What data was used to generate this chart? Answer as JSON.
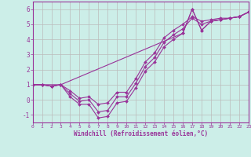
{
  "xlabel": "Windchill (Refroidissement éolien,°C)",
  "xlim": [
    0,
    23
  ],
  "ylim": [
    -1.5,
    6.5
  ],
  "xticks": [
    0,
    1,
    2,
    3,
    4,
    5,
    6,
    7,
    8,
    9,
    10,
    11,
    12,
    13,
    14,
    15,
    16,
    17,
    18,
    19,
    20,
    21,
    22,
    23
  ],
  "yticks": [
    -1,
    0,
    1,
    2,
    3,
    4,
    5,
    6
  ],
  "background_color": "#cceee8",
  "grid_color": "#bbbbbb",
  "line_color": "#993399",
  "line_width": 0.8,
  "marker": "D",
  "marker_size": 2.0,
  "lines": [
    {
      "x": [
        0,
        1,
        2,
        3,
        4,
        5,
        6,
        7,
        8,
        9,
        10,
        11,
        12,
        13,
        14,
        15,
        16,
        17,
        18,
        19,
        20,
        21,
        22,
        23
      ],
      "y": [
        1.0,
        1.0,
        0.9,
        1.0,
        0.2,
        -0.3,
        -0.3,
        -1.2,
        -1.1,
        -0.2,
        -0.1,
        0.8,
        1.9,
        2.5,
        3.5,
        4.0,
        4.4,
        6.0,
        4.6,
        5.2,
        5.3,
        5.4,
        5.5,
        5.8
      ]
    },
    {
      "x": [
        0,
        1,
        2,
        3,
        4,
        5,
        6,
        7,
        8,
        9,
        10,
        11,
        12,
        13,
        14,
        15,
        16,
        17,
        18,
        19,
        20,
        21,
        22,
        23
      ],
      "y": [
        1.0,
        1.0,
        0.9,
        1.0,
        0.4,
        -0.1,
        0.0,
        -0.8,
        -0.7,
        0.2,
        0.2,
        1.1,
        2.2,
        2.8,
        3.8,
        4.3,
        4.7,
        5.4,
        5.0,
        5.2,
        5.3,
        5.4,
        5.5,
        5.8
      ]
    },
    {
      "x": [
        0,
        1,
        2,
        3,
        4,
        5,
        6,
        7,
        8,
        9,
        10,
        11,
        12,
        13,
        14,
        15,
        16,
        17,
        18,
        19,
        20,
        21,
        22,
        23
      ],
      "y": [
        1.0,
        1.0,
        0.9,
        1.0,
        0.6,
        0.1,
        0.2,
        -0.3,
        -0.2,
        0.5,
        0.5,
        1.4,
        2.5,
        3.1,
        4.1,
        4.6,
        5.0,
        5.5,
        5.2,
        5.3,
        5.4,
        5.4,
        5.5,
        5.8
      ]
    },
    {
      "x": [
        0,
        3,
        16,
        17,
        18,
        19,
        20,
        21,
        22,
        23
      ],
      "y": [
        1.0,
        1.0,
        4.4,
        6.0,
        4.6,
        5.2,
        5.3,
        5.4,
        5.5,
        5.8
      ]
    }
  ]
}
